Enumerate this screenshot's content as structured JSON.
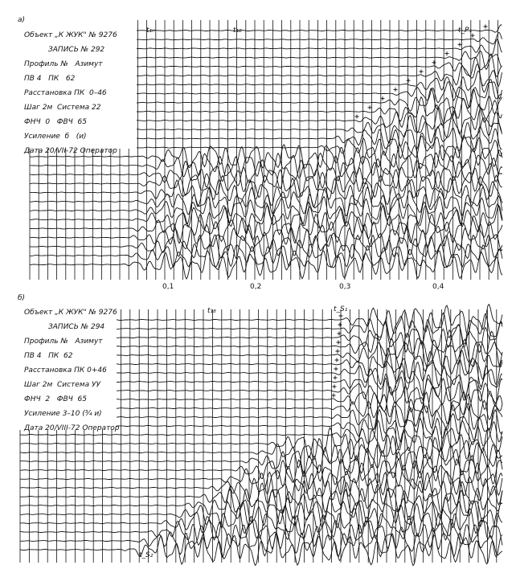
{
  "panel_a": {
    "label": "а)",
    "info": [
      "Объект „К ЖУК\" № 9276",
      "ЗАПИСЬ № 292",
      "Профиль №   Азимут",
      "ПВ 4   ПК   62",
      "Расстановка ПК  0–46",
      "Шаг 2м  Система 22",
      "ФНЧ  0   ФВЧ  65",
      "Усиление  б   (и)",
      "Дата 20/VII-72 Оператор"
    ],
    "annotations": [
      "t₁ₙ",
      "t₁₈",
      "t_P₁"
    ],
    "time_ticks": [
      "0,1",
      "0,2",
      "0,3",
      "0,4"
    ]
  },
  "panel_b": {
    "label": "б)",
    "info": [
      "Объект „К ЖУК\" № 9276",
      "ЗАПИСЬ № 294",
      "Профиль №   Азимут",
      "ПВ 4   ПК  62",
      "Расстановка ПК 0+46",
      "Шаг 2м  Система УУ",
      "ФНЧ  2   ФВЧ  65",
      "Усиление 3–10 (¾ и)",
      "Дата 20/VIII-72 Оператор"
    ],
    "annotations": [
      "t₁₈",
      "t_S₁",
      "t_S₂"
    ]
  },
  "colors": {
    "ink": "#111111",
    "paper": "#ffffff"
  }
}
